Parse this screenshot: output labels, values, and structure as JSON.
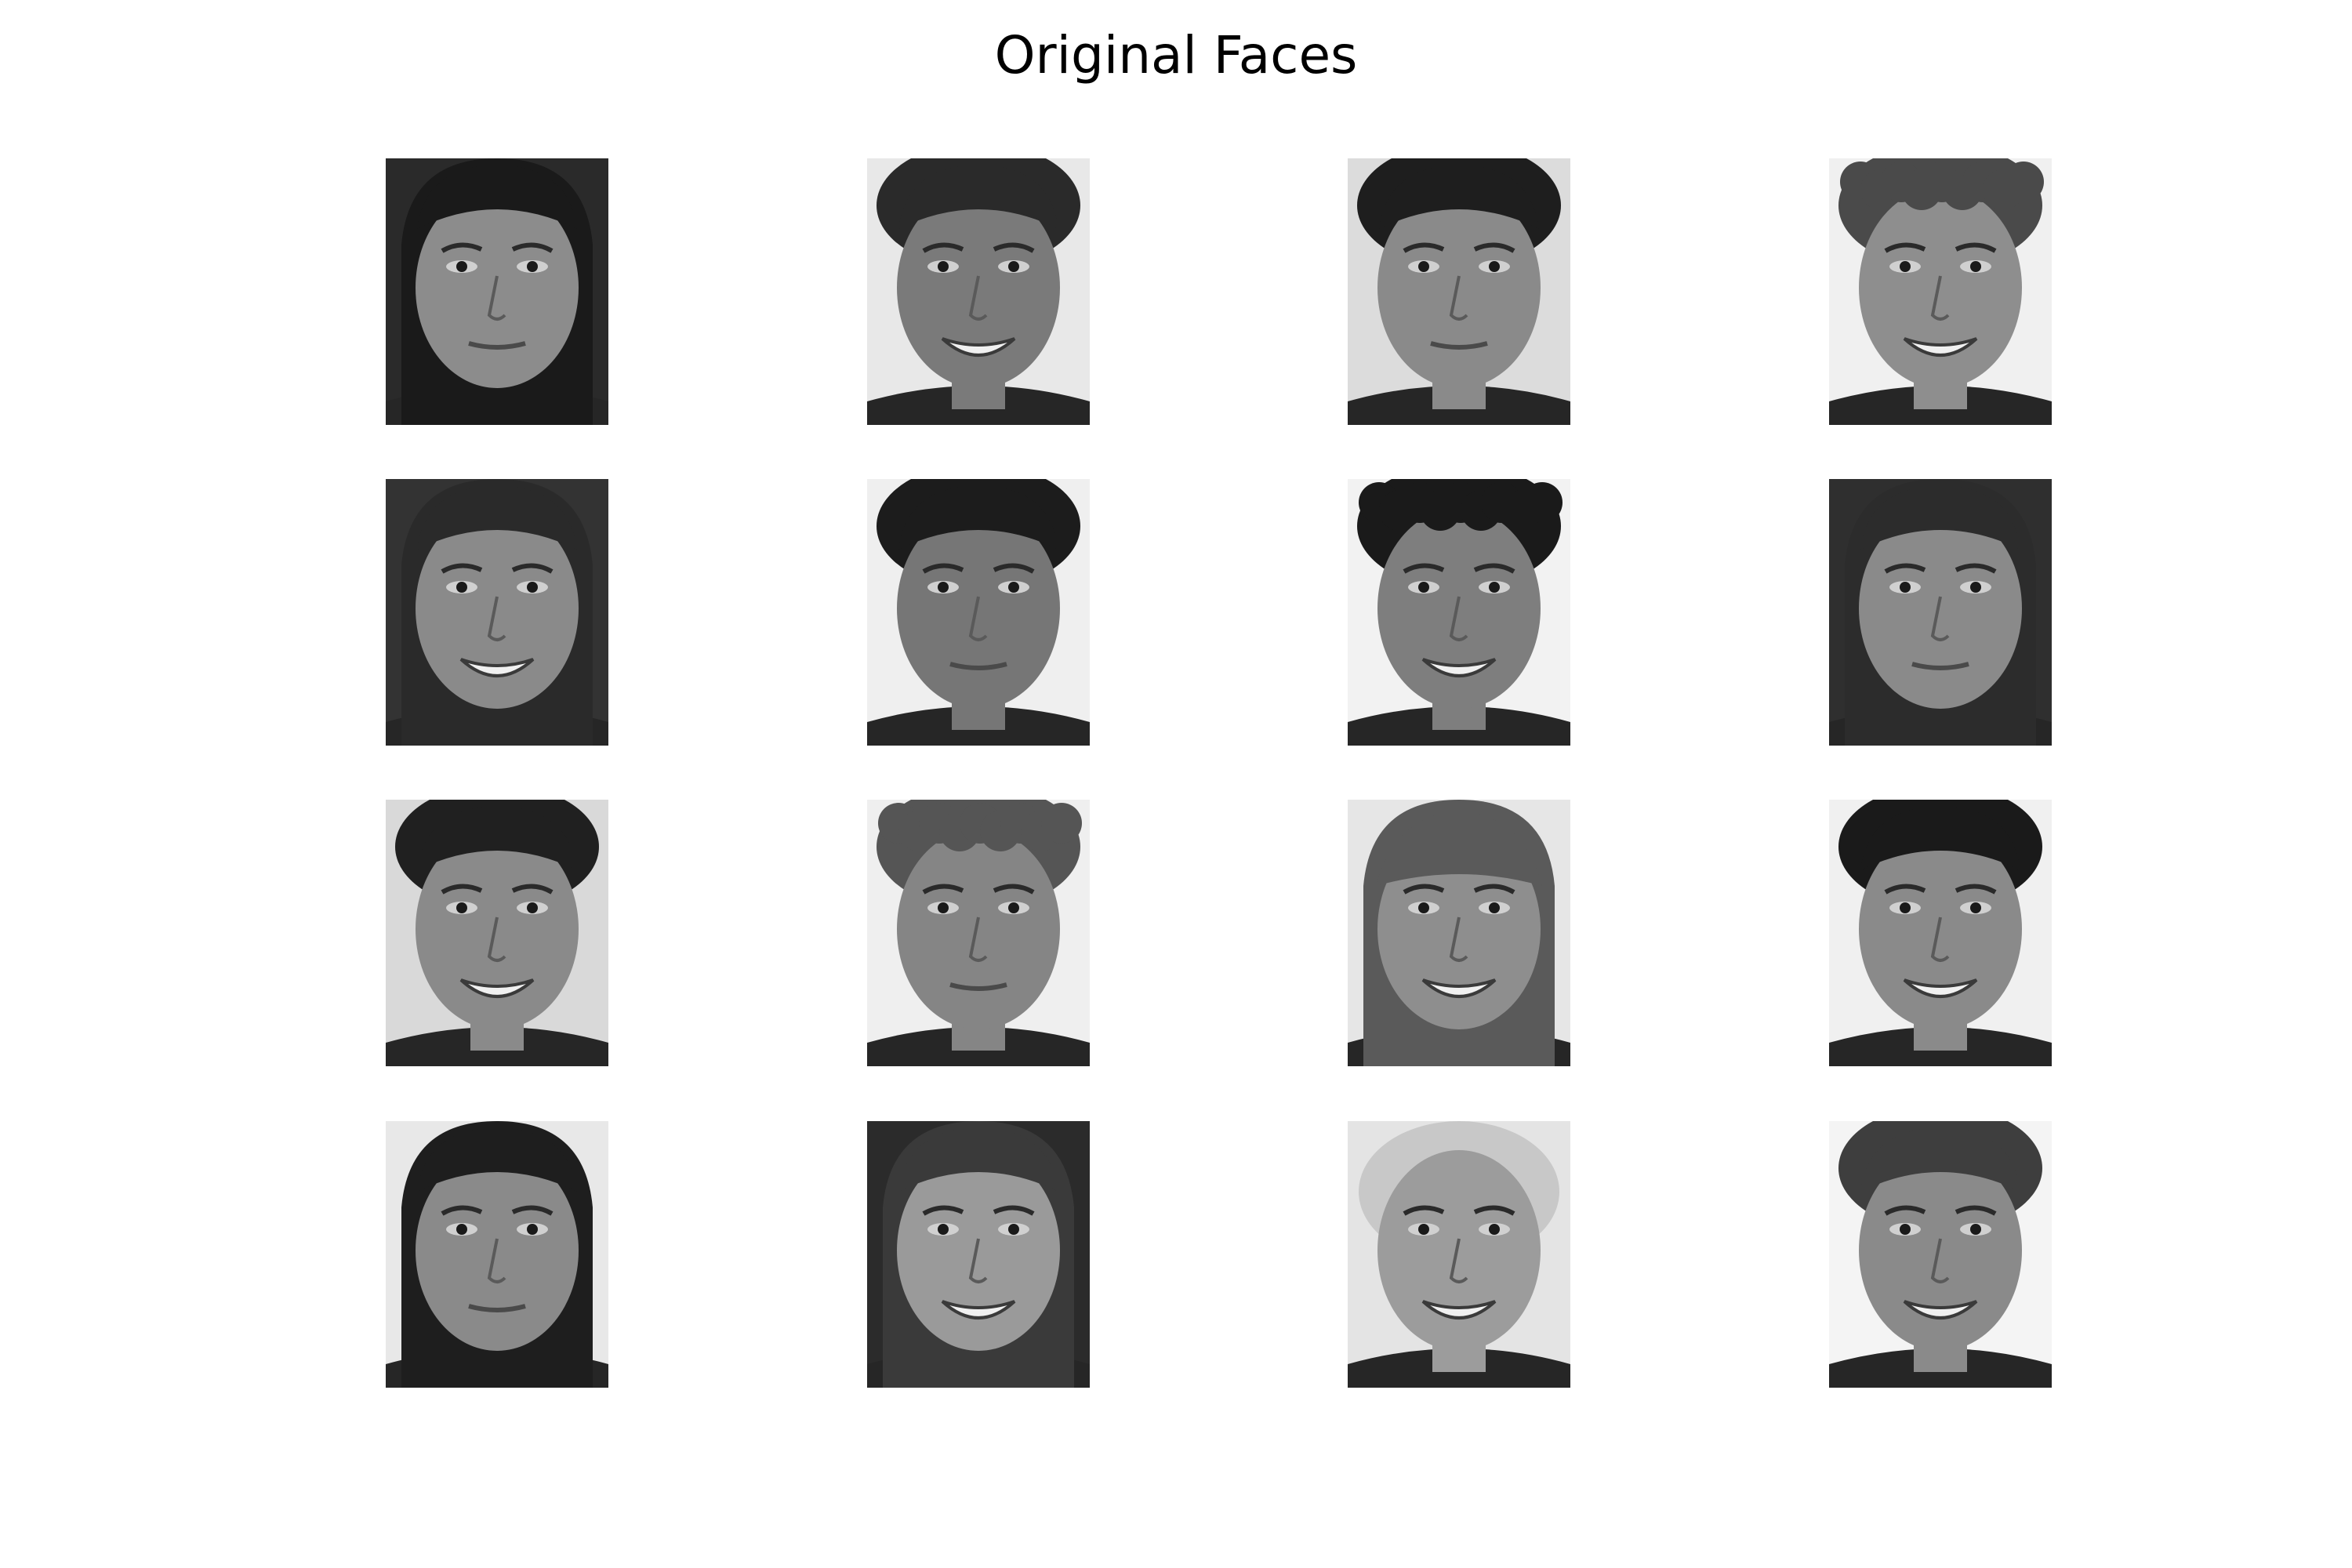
{
  "title": "Original Faces",
  "faces": [
    {
      "hair": "#1a1a1a",
      "skin": "#8c8c8c",
      "bg": "#2a2a2a",
      "smile": false,
      "style": "long"
    },
    {
      "hair": "#2a2a2a",
      "skin": "#7a7a7a",
      "bg": "#e8e8e8",
      "smile": true,
      "style": "short"
    },
    {
      "hair": "#1e1e1e",
      "skin": "#8a8a8a",
      "bg": "#dcdcdc",
      "smile": false,
      "style": "short"
    },
    {
      "hair": "#4a4a4a",
      "skin": "#8e8e8e",
      "bg": "#f0f0f0",
      "smile": true,
      "style": "curly"
    },
    {
      "hair": "#2a2a2a",
      "skin": "#8a8a8a",
      "bg": "#333333",
      "smile": true,
      "style": "long"
    },
    {
      "hair": "#1c1c1c",
      "skin": "#767676",
      "bg": "#efefef",
      "smile": false,
      "style": "short"
    },
    {
      "hair": "#1a1a1a",
      "skin": "#7e7e7e",
      "bg": "#f2f2f2",
      "smile": true,
      "style": "curly"
    },
    {
      "hair": "#2c2c2c",
      "skin": "#8a8a8a",
      "bg": "#2f2f2f",
      "smile": false,
      "style": "long"
    },
    {
      "hair": "#202020",
      "skin": "#8a8a8a",
      "bg": "#d9d9d9",
      "smile": true,
      "style": "short"
    },
    {
      "hair": "#555555",
      "skin": "#858585",
      "bg": "#efefef",
      "smile": false,
      "style": "curly"
    },
    {
      "hair": "#5a5a5a",
      "skin": "#8e8e8e",
      "bg": "#e6e6e6",
      "smile": true,
      "style": "bangs"
    },
    {
      "hair": "#1a1a1a",
      "skin": "#8a8a8a",
      "bg": "#f0f0f0",
      "smile": true,
      "style": "short"
    },
    {
      "hair": "#1e1e1e",
      "skin": "#8a8a8a",
      "bg": "#e8e8e8",
      "smile": false,
      "style": "long"
    },
    {
      "hair": "#3a3a3a",
      "skin": "#9a9a9a",
      "bg": "#2b2b2b",
      "smile": true,
      "style": "long"
    },
    {
      "hair": "#c8c8c8",
      "skin": "#9c9c9c",
      "bg": "#e4e4e4",
      "smile": true,
      "style": "bald"
    },
    {
      "hair": "#3e3e3e",
      "skin": "#8a8a8a",
      "bg": "#f4f4f4",
      "smile": true,
      "style": "short"
    }
  ]
}
